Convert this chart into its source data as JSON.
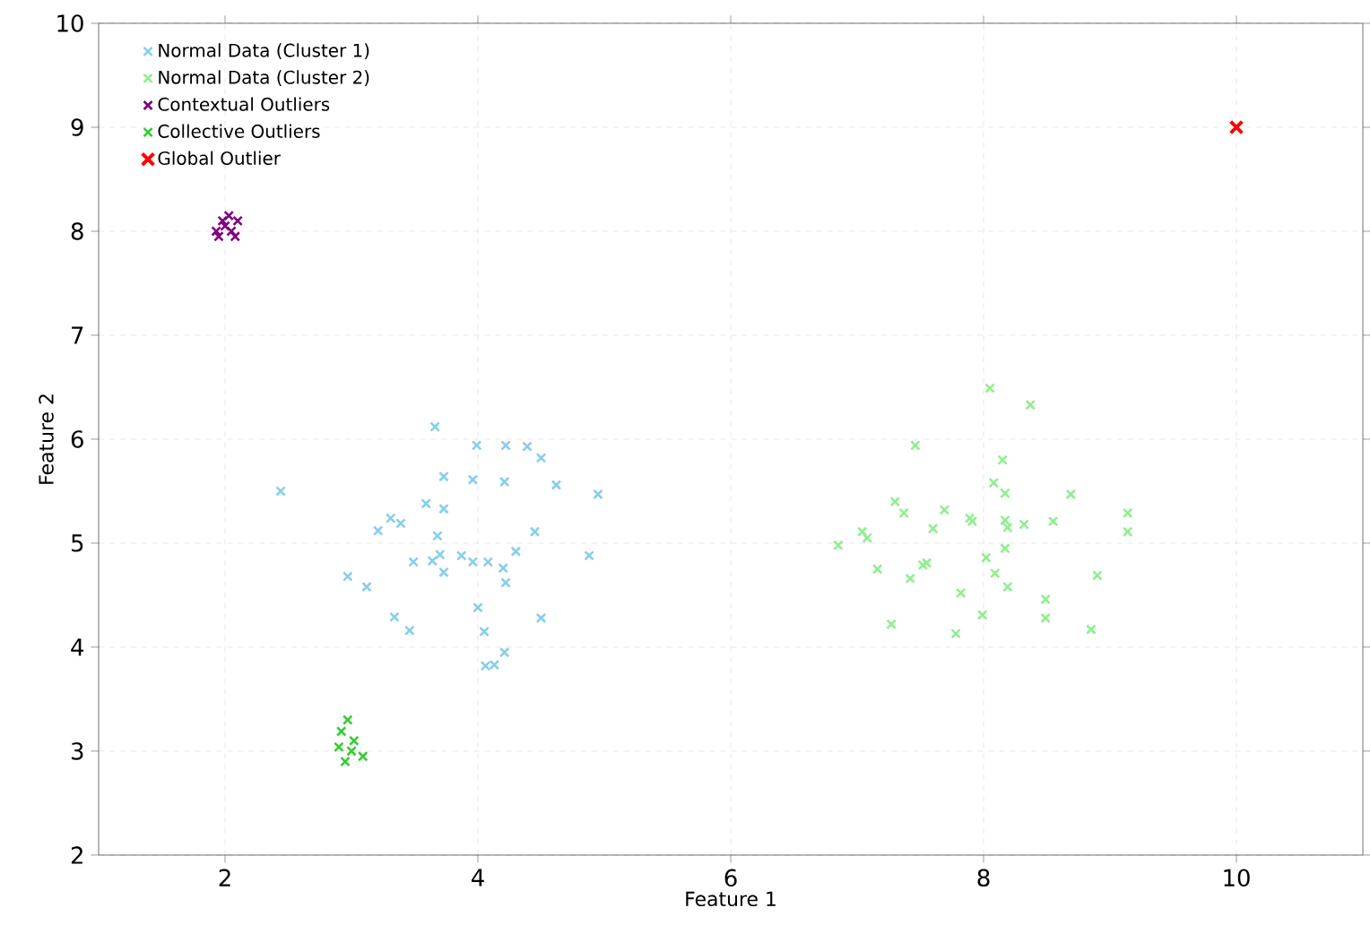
{
  "chart_data": {
    "type": "scatter",
    "xlabel": "Feature 1",
    "ylabel": "Feature 2",
    "xlim": [
      1,
      11
    ],
    "ylim": [
      2,
      10
    ],
    "xticks": [
      2,
      4,
      6,
      8,
      10
    ],
    "yticks": [
      2,
      3,
      4,
      5,
      6,
      7,
      8,
      9,
      10
    ],
    "grid": true,
    "legend": "top left",
    "marker": "cross",
    "series": [
      {
        "name": "Normal Data (Cluster 1)",
        "color": "#87ceeb",
        "x": [
          3.66,
          3.99,
          4.22,
          4.39,
          4.5,
          2.44,
          3.73,
          3.96,
          4.21,
          4.62,
          4.95,
          3.59,
          3.73,
          3.31,
          3.39,
          3.21,
          3.68,
          4.45,
          4.3,
          3.49,
          3.7,
          3.64,
          3.73,
          3.87,
          3.96,
          4.08,
          4.2,
          4.22,
          4.88,
          2.97,
          3.12,
          4.0,
          3.34,
          3.46,
          4.05,
          4.5,
          4.21,
          4.13,
          4.06
        ],
        "values": [
          6.12,
          5.94,
          5.94,
          5.93,
          5.82,
          5.5,
          5.64,
          5.61,
          5.59,
          5.56,
          5.47,
          5.38,
          5.33,
          5.24,
          5.19,
          5.12,
          5.07,
          5.11,
          4.92,
          4.82,
          4.89,
          4.83,
          4.72,
          4.88,
          4.82,
          4.82,
          4.76,
          4.62,
          4.88,
          4.68,
          4.58,
          4.38,
          4.29,
          4.16,
          4.15,
          4.28,
          3.95,
          3.83,
          3.82
        ]
      },
      {
        "name": "Normal Data (Cluster 2)",
        "color": "#90ee90",
        "x": [
          8.05,
          8.37,
          7.46,
          8.15,
          8.08,
          8.17,
          8.69,
          7.3,
          7.37,
          7.69,
          7.6,
          7.89,
          7.91,
          8.17,
          8.19,
          8.32,
          8.55,
          9.14,
          9.14,
          7.04,
          7.08,
          6.85,
          8.17,
          7.55,
          7.52,
          8.02,
          7.16,
          7.42,
          8.09,
          8.19,
          8.9,
          7.82,
          8.49,
          8.49,
          7.99,
          7.27,
          7.78,
          8.85
        ],
        "values": [
          6.49,
          6.33,
          5.94,
          5.8,
          5.58,
          5.48,
          5.47,
          5.4,
          5.29,
          5.32,
          5.14,
          5.24,
          5.21,
          5.22,
          5.15,
          5.18,
          5.21,
          5.29,
          5.11,
          5.11,
          5.05,
          4.98,
          4.95,
          4.81,
          4.79,
          4.86,
          4.75,
          4.66,
          4.71,
          4.58,
          4.69,
          4.52,
          4.46,
          4.28,
          4.31,
          4.22,
          4.13,
          4.17
        ]
      },
      {
        "name": "Contextual Outliers",
        "color": "#800080",
        "x": [
          1.95,
          2.0,
          2.05,
          2.1,
          2.08,
          1.98,
          2.03,
          1.93
        ],
        "values": [
          7.95,
          8.05,
          8.0,
          8.1,
          7.95,
          8.1,
          8.15,
          8.0
        ]
      },
      {
        "name": "Collective Outliers",
        "color": "#32cd32",
        "x": [
          2.97,
          2.92,
          3.02,
          2.9,
          3.09,
          2.95,
          3.0
        ],
        "values": [
          3.3,
          3.19,
          3.1,
          3.04,
          2.95,
          2.9,
          3.0
        ]
      },
      {
        "name": "Global Outlier",
        "color": "#ff0000",
        "x": [
          10
        ],
        "values": [
          9
        ]
      }
    ]
  }
}
